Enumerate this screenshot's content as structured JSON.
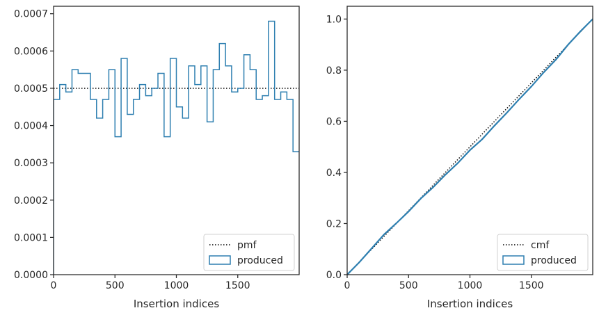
{
  "chart_data": [
    {
      "type": "step",
      "xlabel": "Insertion indices",
      "ylabel": "",
      "xlim": [
        0,
        2000
      ],
      "ylim": [
        0,
        0.00072
      ],
      "xticks": [
        0,
        500,
        1000,
        1500
      ],
      "xtick_labels": [
        "0",
        "500",
        "1000",
        "1500"
      ],
      "yticks": [
        0,
        0.0001,
        0.0002,
        0.0003,
        0.0004,
        0.0005,
        0.0006,
        0.0007
      ],
      "ytick_labels": [
        "0.0000",
        "0.0001",
        "0.0002",
        "0.0003",
        "0.0004",
        "0.0005",
        "0.0006",
        "0.0007"
      ],
      "legend_position": "lower-right",
      "series": [
        {
          "name": "pmf",
          "kind": "reference-line",
          "style": "dotted",
          "color": "#000000",
          "value": 0.0005
        },
        {
          "name": "produced",
          "kind": "histogram-step",
          "color": "#2e7fb0",
          "bin_width": 50,
          "bin_start": 0,
          "values": [
            0.00047,
            0.00051,
            0.00049,
            0.00055,
            0.00054,
            0.00054,
            0.00047,
            0.00042,
            0.00047,
            0.00055,
            0.00037,
            0.00058,
            0.00043,
            0.00047,
            0.00051,
            0.00048,
            0.0005,
            0.00054,
            0.00037,
            0.00058,
            0.00045,
            0.00042,
            0.00056,
            0.00051,
            0.00056,
            0.00041,
            0.00055,
            0.00062,
            0.00056,
            0.00049,
            0.0005,
            0.00059,
            0.00055,
            0.00047,
            0.00048,
            0.00068,
            0.00047,
            0.00049,
            0.00047,
            0.00033
          ]
        }
      ]
    },
    {
      "type": "line",
      "xlabel": "Insertion indices",
      "ylabel": "",
      "xlim": [
        0,
        2000
      ],
      "ylim": [
        0,
        1.05
      ],
      "xticks": [
        0,
        500,
        1000,
        1500
      ],
      "xtick_labels": [
        "0",
        "500",
        "1000",
        "1500"
      ],
      "yticks": [
        0,
        0.2,
        0.4,
        0.6,
        0.8,
        1.0
      ],
      "ytick_labels": [
        "0.0",
        "0.2",
        "0.4",
        "0.6",
        "0.8",
        "1.0"
      ],
      "legend_position": "lower-right",
      "series": [
        {
          "name": "cmf",
          "kind": "reference-line",
          "style": "dotted",
          "color": "#000000",
          "x": [
            0,
            2000
          ],
          "y": [
            0,
            1.0
          ]
        },
        {
          "name": "produced",
          "kind": "cumulative",
          "color": "#2e7fb0",
          "x": [
            0,
            100,
            200,
            300,
            400,
            500,
            600,
            700,
            800,
            900,
            1000,
            1100,
            1200,
            1300,
            1400,
            1500,
            1600,
            1700,
            1800,
            1900,
            2000
          ],
          "y": [
            0,
            0.049,
            0.103,
            0.157,
            0.201,
            0.247,
            0.298,
            0.342,
            0.391,
            0.436,
            0.487,
            0.53,
            0.583,
            0.633,
            0.686,
            0.736,
            0.791,
            0.841,
            0.9,
            0.952,
            1.0
          ]
        }
      ]
    }
  ]
}
